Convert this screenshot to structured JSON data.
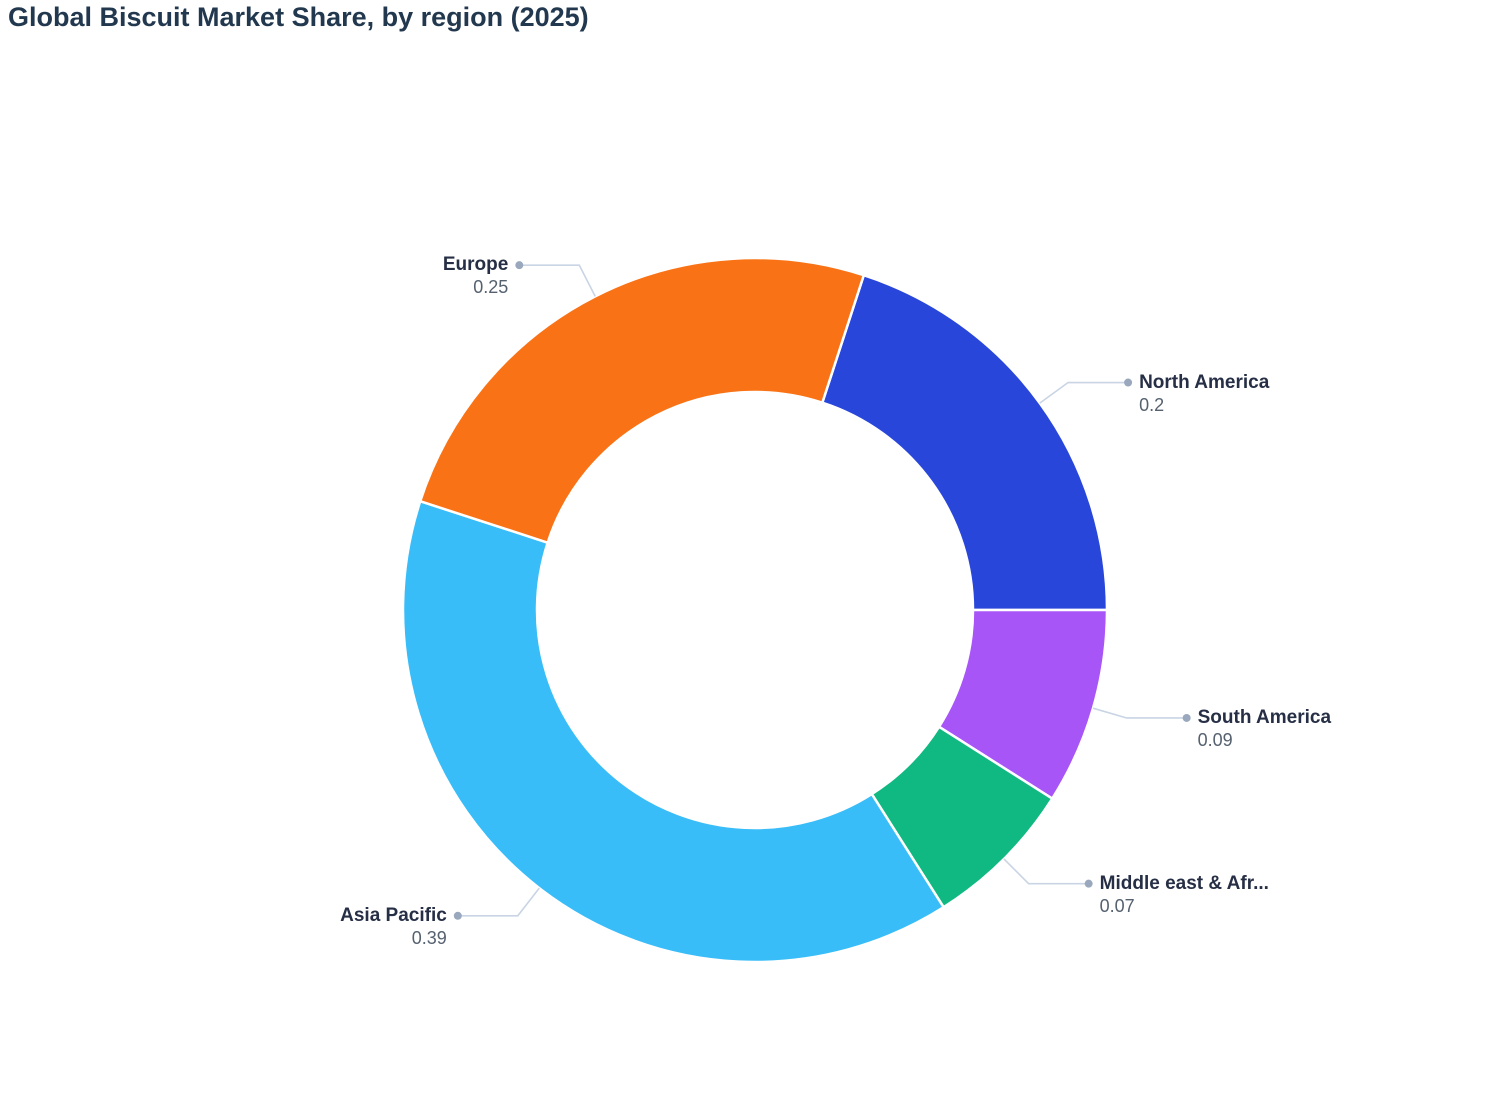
{
  "title": "Global Biscuit Market Share, by region (2025)",
  "chart_data": {
    "type": "pie",
    "variant": "donut",
    "title": "Global Biscuit Market Share, by region (2025)",
    "categories": [
      "North America",
      "South America",
      "Middle east & Afr...",
      "Asia Pacific",
      "Europe"
    ],
    "values": [
      0.2,
      0.09,
      0.07,
      0.39,
      0.25
    ],
    "display_values": [
      "0.2",
      "0.09",
      "0.07",
      "0.39",
      "0.25"
    ],
    "series": [
      {
        "name": "North America",
        "value": 0.2,
        "color": "#2946DB"
      },
      {
        "name": "South America",
        "value": 0.09,
        "color": "#A855F7"
      },
      {
        "name": "Middle east & Afr...",
        "value": 0.07,
        "color": "#10B981"
      },
      {
        "name": "Asia Pacific",
        "value": 0.39,
        "color": "#38BDF8"
      },
      {
        "name": "Europe",
        "value": 0.25,
        "color": "#F97316"
      }
    ],
    "slice_colors": [
      "#2946DB",
      "#A855F7",
      "#10B981",
      "#38BDF8",
      "#F97316"
    ],
    "start_angle_deg_clockwise_from_top": 18,
    "direction": "clockwise",
    "hole_ratio": 0.62,
    "legend": "none",
    "labels": "outside-with-leader-lines",
    "label_style": {
      "leader_line_color": "#C9D4E4",
      "dot_color": "#9AA8BE",
      "name_color": "#262F45",
      "value_color": "#55616F",
      "title_color": "#22384F",
      "separator_color": "#FFFFFF"
    }
  }
}
